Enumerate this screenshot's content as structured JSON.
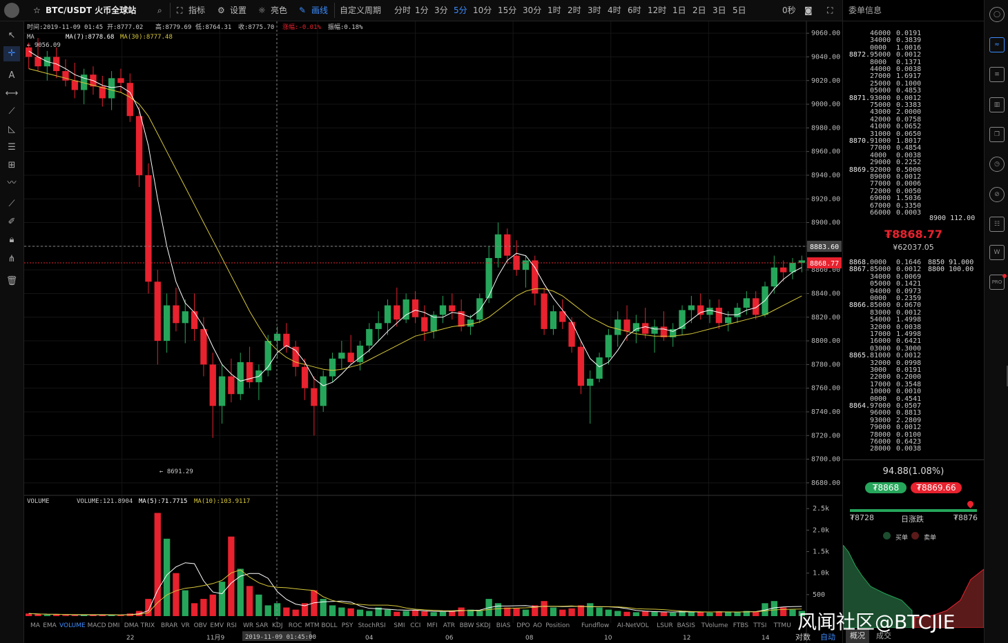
{
  "topbar": {
    "pair": "BTC/USDT 火币全球站",
    "indicator_label": "指标",
    "settings_label": "设置",
    "theme_label": "亮色",
    "draw_label": "画线",
    "custom_period_label": "自定义周期",
    "periods": [
      "分时",
      "1分",
      "3分",
      "5分",
      "10分",
      "15分",
      "30分",
      "1时",
      "2时",
      "3时",
      "4时",
      "6时",
      "12时",
      "1日",
      "2日",
      "3日",
      "5日"
    ],
    "active_period": "5分",
    "countdown": "0秒"
  },
  "ohlc_bar": {
    "time": "时间:2019-11-09 01:45",
    "open": "开:8777.02",
    "high": "高:8779.69",
    "low": "低:8764.31",
    "close": "收:8775.70",
    "change": "涨幅:-0.01%",
    "amplitude": "振幅:0.18%"
  },
  "ma_bar": {
    "label": "MA",
    "ma7": "MA(7):8778.68",
    "ma30": "MA(30):8777.48"
  },
  "price_axis": {
    "ticks": [
      "9060.00",
      "9040.00",
      "9020.00",
      "9000.00",
      "8980.00",
      "8960.00",
      "8940.00",
      "8920.00",
      "8900.00",
      "8880.00",
      "8860.00",
      "8840.00",
      "8820.00",
      "8800.00",
      "8780.00",
      "8760.00",
      "8740.00",
      "8720.00",
      "8700.00",
      "8680.00"
    ],
    "crosshair_price": "8883.60",
    "last_price": "8868.77"
  },
  "annotations": {
    "high": "9056.09",
    "low": "8691.29"
  },
  "volume_bar": {
    "label": "VOLUME",
    "volume": "VOLUME:121.8904",
    "ma5": "MA(5):71.7715",
    "ma10": "MA(10):103.9117"
  },
  "volume_axis": {
    "ticks": [
      "2.5k",
      "2.0k",
      "1.5k",
      "1.0k",
      "500"
    ]
  },
  "indicator_tabs": [
    "MA",
    "EMA",
    "VOLUME",
    "MACD",
    "DMI",
    "DMA",
    "TRIX",
    "BRAR",
    "VR",
    "OBV",
    "EMV",
    "RSI",
    "WR",
    "SAR",
    "KDJ",
    "ROC",
    "MTM",
    "BOLL",
    "PSY",
    "StochRSI",
    "SMI",
    "CCI",
    "MFI",
    "ATR",
    "BBW",
    "SKDJ",
    "BIAS",
    "DPO",
    "AO",
    "Position",
    "Fundflow",
    "AI-NetVOL",
    "LSUR",
    "BASIS",
    "TVolume",
    "FTBS",
    "TTSI",
    "TTMU"
  ],
  "active_indicator": "VOLUME",
  "time_axis": {
    "labels": [
      "22",
      "11月9",
      "04",
      "06",
      "08",
      "10",
      "12",
      "14"
    ],
    "crosshair_time": "2019-11-09 01:45:00"
  },
  "bottom_right": {
    "log": "对数",
    "auto": "自动"
  },
  "orderbook": {
    "title": "委单信息",
    "asks": [
      [
        "",
        "46000",
        "0.0191",
        ""
      ],
      [
        "",
        "34000",
        "0.3839",
        ""
      ],
      [
        "",
        "0000",
        "1.0016",
        ""
      ],
      [
        "8872.",
        "95000",
        "0.0012",
        ""
      ],
      [
        "",
        "8000",
        "0.1371",
        ""
      ],
      [
        "",
        "44000",
        "0.0038",
        ""
      ],
      [
        "",
        "27000",
        "1.6917",
        ""
      ],
      [
        "",
        "25000",
        "0.1000",
        ""
      ],
      [
        "",
        "05000",
        "0.4853",
        ""
      ],
      [
        "8871.",
        "93000",
        "0.0012",
        ""
      ],
      [
        "",
        "75000",
        "0.3383",
        ""
      ],
      [
        "",
        "43000",
        "2.0000",
        ""
      ],
      [
        "",
        "42000",
        "0.0758",
        ""
      ],
      [
        "",
        "41000",
        "0.0652",
        ""
      ],
      [
        "",
        "31000",
        "0.0650",
        ""
      ],
      [
        "8870.",
        "91000",
        "1.8017",
        ""
      ],
      [
        "",
        "77000",
        "0.4854",
        ""
      ],
      [
        "",
        "4000",
        "0.0038",
        ""
      ],
      [
        "",
        "29000",
        "0.2252",
        ""
      ],
      [
        "8869.",
        "92000",
        "0.5000",
        ""
      ],
      [
        "",
        "89000",
        "0.0012",
        ""
      ],
      [
        "",
        "77000",
        "0.0006",
        ""
      ],
      [
        "",
        "72000",
        "0.0050",
        ""
      ],
      [
        "",
        "69000",
        "1.5036",
        ""
      ],
      [
        "",
        "67000",
        "0.3350",
        ""
      ],
      [
        "",
        "66000",
        "0.0003",
        ""
      ]
    ],
    "ask_side_right": "8900 112.00",
    "last_price": "₮8868.77",
    "last_price_cny": "¥62037.05",
    "bids": [
      [
        "8868.",
        "0000",
        "0.1646",
        "8850 91.000"
      ],
      [
        "8867.",
        "85000",
        "0.0012",
        "8800 100.00"
      ],
      [
        "",
        "34000",
        "0.0069",
        ""
      ],
      [
        "",
        "05000",
        "0.1421",
        ""
      ],
      [
        "",
        "04000",
        "0.0973",
        ""
      ],
      [
        "",
        "0000",
        "0.2359",
        ""
      ],
      [
        "8866.",
        "85000",
        "0.0670",
        ""
      ],
      [
        "",
        "83000",
        "0.0012",
        ""
      ],
      [
        "",
        "54000",
        "1.4998",
        ""
      ],
      [
        "",
        "32000",
        "0.0038",
        ""
      ],
      [
        "",
        "17000",
        "1.4998",
        ""
      ],
      [
        "",
        "16000",
        "0.6421",
        ""
      ],
      [
        "",
        "03000",
        "0.3000",
        ""
      ],
      [
        "8865.",
        "81000",
        "0.0012",
        ""
      ],
      [
        "",
        "32000",
        "0.0998",
        ""
      ],
      [
        "",
        "3000",
        "0.0191",
        ""
      ],
      [
        "",
        "22000",
        "0.2000",
        ""
      ],
      [
        "",
        "17000",
        "0.3548",
        ""
      ],
      [
        "",
        "10000",
        "0.0010",
        ""
      ],
      [
        "",
        "0000",
        "0.4541",
        ""
      ],
      [
        "8864.",
        "97000",
        "0.0507",
        ""
      ],
      [
        "",
        "96000",
        "0.8813",
        ""
      ],
      [
        "",
        "93000",
        "2.2809",
        ""
      ],
      [
        "",
        "79000",
        "0.0012",
        ""
      ],
      [
        "",
        "78000",
        "0.0100",
        ""
      ],
      [
        "",
        "76000",
        "0.6423",
        ""
      ],
      [
        "",
        "28000",
        "0.0038",
        ""
      ]
    ],
    "change": "94.88(1.08%)",
    "bid1": "₮8868",
    "ask1": "₮8869.66",
    "day_low": "₮8728",
    "day_range_label": "日涨跌",
    "day_high": "₮8876",
    "buy_label": "买单",
    "sell_label": "卖单",
    "tab_overview": "概况",
    "tab_trades": "成交"
  },
  "rightbar": {
    "pro_label": "PRO"
  },
  "watermark": "风闻社区@BTCJIE",
  "colors": {
    "up": "#26a65b",
    "down": "#e8222e",
    "ma7": "#ffffff",
    "ma30": "#d9c93a",
    "accent": "#3c8dff",
    "bg": "#000000"
  },
  "chart_data": {
    "type": "candlestick",
    "series": [
      {
        "name": "MA(7)",
        "kind": "line"
      },
      {
        "name": "MA(30)",
        "kind": "line"
      }
    ],
    "price_range": [
      8670,
      9070
    ],
    "volume_range": [
      0,
      2600
    ],
    "candles": [
      [
        9048,
        9052,
        9030,
        9040
      ],
      [
        9040,
        9056,
        9028,
        9032
      ],
      [
        9032,
        9045,
        9020,
        9040
      ],
      [
        9040,
        9048,
        9022,
        9028
      ],
      [
        9028,
        9038,
        9015,
        9020
      ],
      [
        9020,
        9035,
        9005,
        9012
      ],
      [
        9012,
        9030,
        9000,
        9025
      ],
      [
        9025,
        9032,
        9008,
        9015
      ],
      [
        9015,
        9024,
        8998,
        9005
      ],
      [
        9005,
        9028,
        8995,
        9022
      ],
      [
        9022,
        9030,
        9010,
        9018
      ],
      [
        9018,
        9026,
        8985,
        8990
      ],
      [
        8990,
        8998,
        8930,
        8940
      ],
      [
        8940,
        8950,
        8840,
        8850
      ],
      [
        8850,
        8860,
        8780,
        8800
      ],
      [
        8800,
        8840,
        8790,
        8830
      ],
      [
        8830,
        8845,
        8808,
        8815
      ],
      [
        8815,
        8835,
        8798,
        8825
      ],
      [
        8825,
        8840,
        8800,
        8810
      ],
      [
        8810,
        8820,
        8770,
        8780
      ],
      [
        8780,
        8790,
        8718,
        8745
      ],
      [
        8745,
        8780,
        8730,
        8770
      ],
      [
        8770,
        8785,
        8748,
        8755
      ],
      [
        8755,
        8790,
        8750,
        8782
      ],
      [
        8782,
        8795,
        8760,
        8765
      ],
      [
        8765,
        8780,
        8750,
        8775
      ],
      [
        8775,
        8805,
        8770,
        8800
      ],
      [
        8800,
        8812,
        8785,
        8806
      ],
      [
        8806,
        8815,
        8790,
        8795
      ],
      [
        8795,
        8800,
        8770,
        8778
      ],
      [
        8778,
        8785,
        8750,
        8760
      ],
      [
        8760,
        8770,
        8720,
        8745
      ],
      [
        8745,
        8775,
        8740,
        8770
      ],
      [
        8770,
        8790,
        8765,
        8785
      ],
      [
        8785,
        8800,
        8776,
        8790
      ],
      [
        8790,
        8805,
        8780,
        8782
      ],
      [
        8782,
        8800,
        8775,
        8796
      ],
      [
        8796,
        8815,
        8790,
        8810
      ],
      [
        8810,
        8825,
        8800,
        8815
      ],
      [
        8815,
        8835,
        8805,
        8830
      ],
      [
        8830,
        8845,
        8812,
        8818
      ],
      [
        8818,
        8840,
        8815,
        8835
      ],
      [
        8835,
        8842,
        8815,
        8820
      ],
      [
        8820,
        8830,
        8800,
        8808
      ],
      [
        8808,
        8825,
        8802,
        8822
      ],
      [
        8822,
        8838,
        8815,
        8830
      ],
      [
        8830,
        8840,
        8818,
        8825
      ],
      [
        8825,
        8835,
        8808,
        8812
      ],
      [
        8812,
        8822,
        8805,
        8818
      ],
      [
        8818,
        8840,
        8815,
        8836
      ],
      [
        8836,
        8880,
        8832,
        8870
      ],
      [
        8870,
        8900,
        8862,
        8890
      ],
      [
        8890,
        8895,
        8865,
        8872
      ],
      [
        8872,
        8885,
        8855,
        8860
      ],
      [
        8860,
        8872,
        8845,
        8868
      ],
      [
        8868,
        8872,
        8830,
        8840
      ],
      [
        8840,
        8845,
        8805,
        8810
      ],
      [
        8810,
        8830,
        8805,
        8825
      ],
      [
        8825,
        8835,
        8810,
        8816
      ],
      [
        8816,
        8820,
        8790,
        8795
      ],
      [
        8795,
        8800,
        8755,
        8762
      ],
      [
        8762,
        8775,
        8730,
        8768
      ],
      [
        8768,
        8790,
        8765,
        8786
      ],
      [
        8786,
        8810,
        8780,
        8805
      ],
      [
        8805,
        8825,
        8795,
        8818
      ],
      [
        8818,
        8830,
        8800,
        8808
      ],
      [
        8808,
        8822,
        8798,
        8815
      ],
      [
        8815,
        8828,
        8802,
        8806
      ],
      [
        8806,
        8818,
        8790,
        8812
      ],
      [
        8812,
        8825,
        8800,
        8803
      ],
      [
        8803,
        8815,
        8795,
        8810
      ],
      [
        8810,
        8830,
        8805,
        8826
      ],
      [
        8826,
        8838,
        8815,
        8830
      ],
      [
        8830,
        8840,
        8818,
        8822
      ],
      [
        8822,
        8835,
        8815,
        8828
      ],
      [
        8828,
        8835,
        8810,
        8815
      ],
      [
        8815,
        8825,
        8808,
        8820
      ],
      [
        8820,
        8832,
        8815,
        8828
      ],
      [
        8828,
        8842,
        8822,
        8836
      ],
      [
        8836,
        8842,
        8818,
        8822
      ],
      [
        8822,
        8850,
        8820,
        8846
      ],
      [
        8846,
        8872,
        8840,
        8862
      ],
      [
        8862,
        8868,
        8850,
        8858
      ],
      [
        8858,
        8870,
        8852,
        8866
      ],
      [
        8866,
        8872,
        8858,
        8868
      ]
    ],
    "ma7": [
      9045,
      9040,
      9036,
      9034,
      9030,
      9025,
      9022,
      9020,
      9016,
      9014,
      9015,
      9010,
      8995,
      8965,
      8920,
      8880,
      8850,
      8832,
      8824,
      8812,
      8795,
      8780,
      8772,
      8766,
      8768,
      8770,
      8778,
      8790,
      8796,
      8792,
      8782,
      8768,
      8762,
      8765,
      8772,
      8780,
      8786,
      8792,
      8800,
      8808,
      8815,
      8822,
      8826,
      8824,
      8820,
      8820,
      8824,
      8823,
      8820,
      8826,
      8838,
      8855,
      8868,
      8874,
      8872,
      8862,
      8848,
      8836,
      8826,
      8816,
      8800,
      8785,
      8778,
      8782,
      8792,
      8804,
      8810,
      8812,
      8810,
      8810,
      8808,
      8812,
      8818,
      8824,
      8826,
      8824,
      8822,
      8822,
      8826,
      8828,
      8834,
      8844,
      8852,
      8858,
      8862
    ],
    "ma30": [
      9030,
      9028,
      9026,
      9024,
      9022,
      9020,
      9018,
      9016,
      9014,
      9012,
      9010,
      9006,
      9000,
      8990,
      8975,
      8960,
      8945,
      8930,
      8915,
      8900,
      8885,
      8870,
      8855,
      8840,
      8825,
      8812,
      8800,
      8792,
      8786,
      8782,
      8780,
      8778,
      8776,
      8775,
      8776,
      8778,
      8780,
      8784,
      8788,
      8792,
      8796,
      8800,
      8804,
      8806,
      8808,
      8810,
      8812,
      8813,
      8814,
      8816,
      8820,
      8826,
      8832,
      8838,
      8842,
      8844,
      8844,
      8842,
      8838,
      8832,
      8826,
      8820,
      8816,
      8812,
      8810,
      8808,
      8806,
      8805,
      8804,
      8804,
      8804,
      8805,
      8806,
      8808,
      8810,
      8812,
      8814,
      8816,
      8818,
      8820,
      8822,
      8826,
      8830,
      8834,
      8838
    ],
    "volume": [
      60,
      40,
      30,
      35,
      25,
      20,
      30,
      25,
      35,
      20,
      30,
      60,
      120,
      400,
      2400,
      1800,
      1000,
      600,
      300,
      400,
      500,
      800,
      1850,
      1100,
      700,
      500,
      250,
      300,
      200,
      150,
      300,
      600,
      400,
      250,
      200,
      180,
      150,
      120,
      200,
      150,
      100,
      120,
      130,
      110,
      90,
      100,
      120,
      200,
      150,
      120,
      400,
      300,
      200,
      180,
      150,
      250,
      350,
      200,
      150,
      180,
      250,
      300,
      200,
      150,
      120,
      100,
      90,
      110,
      100,
      90,
      80,
      120,
      100,
      90,
      80,
      110,
      100,
      90,
      120,
      100,
      300,
      350,
      200,
      150,
      120
    ]
  }
}
